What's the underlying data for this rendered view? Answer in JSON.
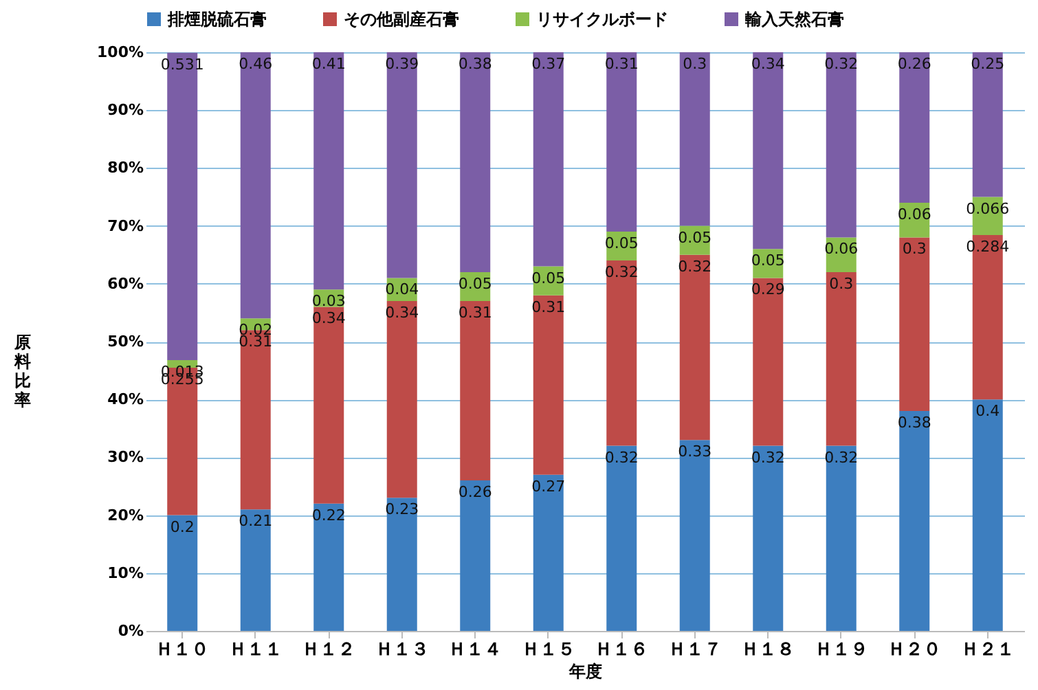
{
  "chart_data": {
    "type": "bar",
    "stacked": true,
    "xlabel": "年度",
    "ylabel": "原料比率",
    "categories": [
      "Ｈ１０",
      "Ｈ１１",
      "Ｈ１２",
      "Ｈ１３",
      "Ｈ１４",
      "Ｈ１５",
      "Ｈ１６",
      "Ｈ１７",
      "Ｈ１８",
      "Ｈ１９",
      "Ｈ２０",
      "Ｈ２１"
    ],
    "series": [
      {
        "name": "排煙脱硫石膏",
        "color": "#3d7ebf",
        "values": [
          0.2,
          0.21,
          0.22,
          0.23,
          0.26,
          0.27,
          0.32,
          0.33,
          0.32,
          0.32,
          0.38,
          0.4
        ]
      },
      {
        "name": "その他副産石膏",
        "color": "#be4b48",
        "values": [
          0.255,
          0.31,
          0.34,
          0.34,
          0.31,
          0.31,
          0.32,
          0.32,
          0.29,
          0.3,
          0.3,
          0.284
        ]
      },
      {
        "name": "リサイクルボード",
        "color": "#8cbf4c",
        "values": [
          0.013,
          0.02,
          0.03,
          0.04,
          0.05,
          0.05,
          0.05,
          0.05,
          0.05,
          0.06,
          0.06,
          0.066
        ]
      },
      {
        "name": "輸入天然石膏",
        "color": "#7b5ea6",
        "values": [
          0.531,
          0.46,
          0.41,
          0.39,
          0.38,
          0.37,
          0.31,
          0.3,
          0.34,
          0.32,
          0.26,
          0.25
        ]
      }
    ],
    "ylim": [
      0,
      1
    ],
    "yticks": [
      {
        "value": 0,
        "label": "0%"
      },
      {
        "value": 0.1,
        "label": "10%"
      },
      {
        "value": 0.2,
        "label": "20%"
      },
      {
        "value": 0.3,
        "label": "30%"
      },
      {
        "value": 0.4,
        "label": "40%"
      },
      {
        "value": 0.5,
        "label": "50%"
      },
      {
        "value": 0.6,
        "label": "60%"
      },
      {
        "value": 0.7,
        "label": "70%"
      },
      {
        "value": 0.8,
        "label": "80%"
      },
      {
        "value": 0.9,
        "label": "90%"
      },
      {
        "value": 1,
        "label": "100%"
      }
    ],
    "grid": "y",
    "legend": "top",
    "data_labels": true
  }
}
